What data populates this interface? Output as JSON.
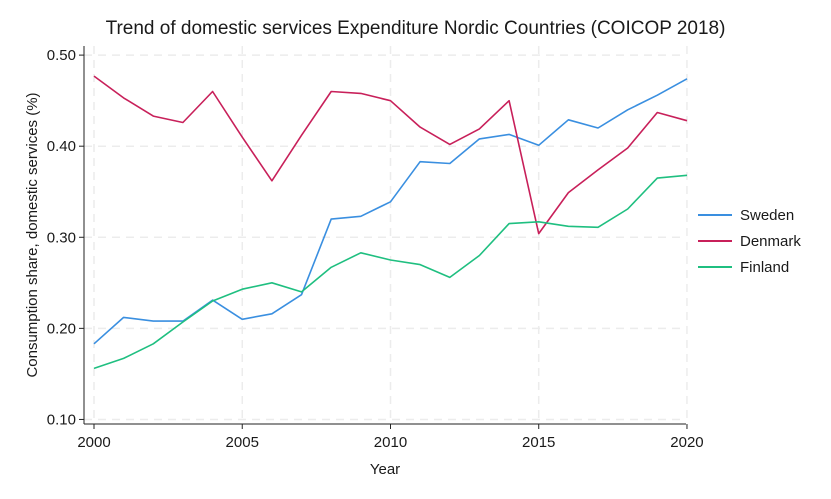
{
  "chart_data": {
    "type": "line",
    "title": "Trend of domestic services Expenditure Nordic Countries (COICOP 2018)",
    "xlabel": "Year",
    "ylabel": "Consumption share, domestic services (%)",
    "xlim": [
      2000,
      2020
    ],
    "ylim": [
      0.095,
      0.51
    ],
    "xticks": [
      2000,
      2005,
      2010,
      2015,
      2020
    ],
    "yticks": [
      0.1,
      0.2,
      0.3,
      0.4,
      0.5
    ],
    "ytick_labels": [
      "0.10",
      "0.20",
      "0.30",
      "0.40",
      "0.50"
    ],
    "grid": true,
    "legend_position": "right",
    "x": [
      2000,
      2001,
      2002,
      2003,
      2004,
      2005,
      2006,
      2007,
      2008,
      2009,
      2010,
      2011,
      2012,
      2013,
      2014,
      2015,
      2016,
      2017,
      2018,
      2019,
      2020
    ],
    "series": [
      {
        "name": "Sweden",
        "color": "#3a8fe0",
        "values": [
          0.183,
          0.212,
          0.208,
          0.208,
          0.231,
          0.21,
          0.216,
          0.237,
          0.32,
          0.323,
          0.339,
          0.383,
          0.381,
          0.408,
          0.413,
          0.401,
          0.429,
          0.42,
          0.44,
          0.456,
          0.474
        ]
      },
      {
        "name": "Denmark",
        "color": "#c8205a",
        "values": [
          0.477,
          0.453,
          0.433,
          0.426,
          0.46,
          0.41,
          0.362,
          0.412,
          0.46,
          0.458,
          0.45,
          0.421,
          0.402,
          0.419,
          0.45,
          0.304,
          0.349,
          0.374,
          0.398,
          0.437,
          0.428
        ]
      },
      {
        "name": "Finland",
        "color": "#1fbf80",
        "values": [
          0.156,
          0.167,
          0.183,
          0.207,
          0.23,
          0.243,
          0.25,
          0.24,
          0.267,
          0.283,
          0.275,
          0.27,
          0.256,
          0.28,
          0.315,
          0.317,
          0.312,
          0.311,
          0.331,
          0.365,
          0.368
        ]
      }
    ]
  }
}
